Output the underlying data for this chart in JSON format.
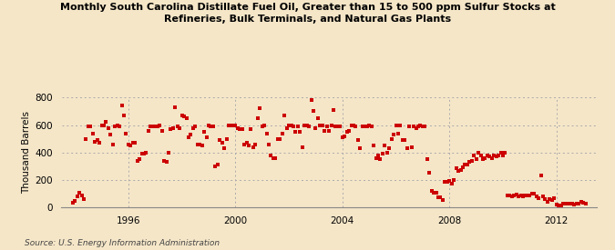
{
  "title": "Monthly South Carolina Distillate Fuel Oil, Greater than 15 to 500 ppm Sulfur Stocks at\nRefineries, Bulk Terminals, and Natural Gas Plants",
  "ylabel": "Thousand Barrels",
  "source": "Source: U.S. Energy Information Administration",
  "background_color": "#f5e6c8",
  "plot_bg_color": "#f5e6c8",
  "marker_color": "#cc0000",
  "marker_size": 6,
  "xlim_start": 1993.5,
  "xlim_end": 2013.5,
  "ylim": [
    0,
    800
  ],
  "yticks": [
    0,
    200,
    400,
    600,
    800
  ],
  "xticks": [
    1996,
    2000,
    2004,
    2008,
    2012
  ],
  "data": [
    [
      1993.917,
      35
    ],
    [
      1994.0,
      50
    ],
    [
      1994.083,
      80
    ],
    [
      1994.167,
      110
    ],
    [
      1994.25,
      90
    ],
    [
      1994.333,
      60
    ],
    [
      1994.417,
      500
    ],
    [
      1994.5,
      590
    ],
    [
      1994.583,
      590
    ],
    [
      1994.667,
      540
    ],
    [
      1994.75,
      480
    ],
    [
      1994.833,
      490
    ],
    [
      1994.917,
      470
    ],
    [
      1995.0,
      600
    ],
    [
      1995.083,
      600
    ],
    [
      1995.167,
      620
    ],
    [
      1995.25,
      580
    ],
    [
      1995.333,
      530
    ],
    [
      1995.417,
      460
    ],
    [
      1995.5,
      590
    ],
    [
      1995.583,
      600
    ],
    [
      1995.667,
      590
    ],
    [
      1995.75,
      745
    ],
    [
      1995.833,
      670
    ],
    [
      1995.917,
      540
    ],
    [
      1996.0,
      460
    ],
    [
      1996.083,
      450
    ],
    [
      1996.167,
      470
    ],
    [
      1996.25,
      470
    ],
    [
      1996.333,
      340
    ],
    [
      1996.417,
      350
    ],
    [
      1996.5,
      390
    ],
    [
      1996.583,
      390
    ],
    [
      1996.667,
      400
    ],
    [
      1996.75,
      560
    ],
    [
      1996.833,
      590
    ],
    [
      1996.917,
      590
    ],
    [
      1997.0,
      590
    ],
    [
      1997.083,
      590
    ],
    [
      1997.167,
      600
    ],
    [
      1997.25,
      560
    ],
    [
      1997.333,
      340
    ],
    [
      1997.417,
      330
    ],
    [
      1997.5,
      400
    ],
    [
      1997.583,
      570
    ],
    [
      1997.667,
      580
    ],
    [
      1997.75,
      730
    ],
    [
      1997.833,
      590
    ],
    [
      1997.917,
      580
    ],
    [
      1998.0,
      670
    ],
    [
      1998.083,
      660
    ],
    [
      1998.167,
      650
    ],
    [
      1998.25,
      510
    ],
    [
      1998.333,
      530
    ],
    [
      1998.417,
      580
    ],
    [
      1998.5,
      590
    ],
    [
      1998.583,
      460
    ],
    [
      1998.667,
      460
    ],
    [
      1998.75,
      450
    ],
    [
      1998.833,
      550
    ],
    [
      1998.917,
      510
    ],
    [
      1999.0,
      600
    ],
    [
      1999.083,
      590
    ],
    [
      1999.167,
      590
    ],
    [
      1999.25,
      300
    ],
    [
      1999.333,
      310
    ],
    [
      1999.417,
      490
    ],
    [
      1999.5,
      470
    ],
    [
      1999.583,
      430
    ],
    [
      1999.667,
      500
    ],
    [
      1999.75,
      600
    ],
    [
      1999.833,
      600
    ],
    [
      1999.917,
      600
    ],
    [
      2000.0,
      600
    ],
    [
      2000.083,
      580
    ],
    [
      2000.167,
      570
    ],
    [
      2000.25,
      570
    ],
    [
      2000.333,
      455
    ],
    [
      2000.417,
      470
    ],
    [
      2000.5,
      450
    ],
    [
      2000.583,
      570
    ],
    [
      2000.667,
      440
    ],
    [
      2000.75,
      455
    ],
    [
      2000.833,
      650
    ],
    [
      2000.917,
      720
    ],
    [
      2001.0,
      590
    ],
    [
      2001.083,
      600
    ],
    [
      2001.167,
      540
    ],
    [
      2001.25,
      460
    ],
    [
      2001.333,
      380
    ],
    [
      2001.417,
      360
    ],
    [
      2001.5,
      360
    ],
    [
      2001.583,
      500
    ],
    [
      2001.667,
      500
    ],
    [
      2001.75,
      540
    ],
    [
      2001.833,
      670
    ],
    [
      2001.917,
      580
    ],
    [
      2002.0,
      600
    ],
    [
      2002.083,
      600
    ],
    [
      2002.167,
      590
    ],
    [
      2002.25,
      550
    ],
    [
      2002.333,
      590
    ],
    [
      2002.417,
      550
    ],
    [
      2002.5,
      440
    ],
    [
      2002.583,
      600
    ],
    [
      2002.667,
      600
    ],
    [
      2002.75,
      590
    ],
    [
      2002.833,
      780
    ],
    [
      2002.917,
      700
    ],
    [
      2003.0,
      580
    ],
    [
      2003.083,
      650
    ],
    [
      2003.167,
      600
    ],
    [
      2003.25,
      600
    ],
    [
      2003.333,
      560
    ],
    [
      2003.417,
      590
    ],
    [
      2003.5,
      560
    ],
    [
      2003.583,
      600
    ],
    [
      2003.667,
      710
    ],
    [
      2003.75,
      590
    ],
    [
      2003.833,
      590
    ],
    [
      2003.917,
      590
    ],
    [
      2004.0,
      510
    ],
    [
      2004.083,
      520
    ],
    [
      2004.167,
      550
    ],
    [
      2004.25,
      560
    ],
    [
      2004.333,
      600
    ],
    [
      2004.417,
      600
    ],
    [
      2004.5,
      590
    ],
    [
      2004.583,
      490
    ],
    [
      2004.667,
      430
    ],
    [
      2004.75,
      590
    ],
    [
      2004.833,
      590
    ],
    [
      2004.917,
      590
    ],
    [
      2005.0,
      600
    ],
    [
      2005.083,
      590
    ],
    [
      2005.167,
      450
    ],
    [
      2005.25,
      360
    ],
    [
      2005.333,
      380
    ],
    [
      2005.417,
      350
    ],
    [
      2005.5,
      390
    ],
    [
      2005.583,
      450
    ],
    [
      2005.667,
      400
    ],
    [
      2005.75,
      430
    ],
    [
      2005.833,
      500
    ],
    [
      2005.917,
      530
    ],
    [
      2006.0,
      600
    ],
    [
      2006.083,
      540
    ],
    [
      2006.167,
      600
    ],
    [
      2006.25,
      490
    ],
    [
      2006.333,
      490
    ],
    [
      2006.417,
      430
    ],
    [
      2006.5,
      590
    ],
    [
      2006.583,
      440
    ],
    [
      2006.667,
      590
    ],
    [
      2006.75,
      580
    ],
    [
      2006.833,
      590
    ],
    [
      2006.917,
      600
    ],
    [
      2007.0,
      590
    ],
    [
      2007.083,
      590
    ],
    [
      2007.167,
      350
    ],
    [
      2007.25,
      250
    ],
    [
      2007.333,
      120
    ],
    [
      2007.417,
      110
    ],
    [
      2007.5,
      110
    ],
    [
      2007.583,
      75
    ],
    [
      2007.667,
      75
    ],
    [
      2007.75,
      55
    ],
    [
      2007.833,
      190
    ],
    [
      2007.917,
      185
    ],
    [
      2008.0,
      195
    ],
    [
      2008.083,
      175
    ],
    [
      2008.167,
      200
    ],
    [
      2008.25,
      285
    ],
    [
      2008.333,
      265
    ],
    [
      2008.417,
      275
    ],
    [
      2008.5,
      295
    ],
    [
      2008.583,
      310
    ],
    [
      2008.667,
      310
    ],
    [
      2008.75,
      330
    ],
    [
      2008.833,
      340
    ],
    [
      2008.917,
      380
    ],
    [
      2009.0,
      355
    ],
    [
      2009.083,
      400
    ],
    [
      2009.167,
      380
    ],
    [
      2009.25,
      350
    ],
    [
      2009.333,
      360
    ],
    [
      2009.417,
      380
    ],
    [
      2009.5,
      370
    ],
    [
      2009.583,
      360
    ],
    [
      2009.667,
      380
    ],
    [
      2009.75,
      370
    ],
    [
      2009.833,
      380
    ],
    [
      2009.917,
      400
    ],
    [
      2010.0,
      380
    ],
    [
      2010.083,
      400
    ],
    [
      2010.167,
      90
    ],
    [
      2010.25,
      85
    ],
    [
      2010.333,
      80
    ],
    [
      2010.417,
      90
    ],
    [
      2010.5,
      95
    ],
    [
      2010.583,
      80
    ],
    [
      2010.667,
      85
    ],
    [
      2010.75,
      80
    ],
    [
      2010.833,
      90
    ],
    [
      2010.917,
      90
    ],
    [
      2011.0,
      90
    ],
    [
      2011.083,
      100
    ],
    [
      2011.167,
      100
    ],
    [
      2011.25,
      80
    ],
    [
      2011.333,
      70
    ],
    [
      2011.417,
      230
    ],
    [
      2011.5,
      80
    ],
    [
      2011.583,
      60
    ],
    [
      2011.667,
      40
    ],
    [
      2011.75,
      60
    ],
    [
      2011.833,
      55
    ],
    [
      2011.917,
      70
    ],
    [
      2012.0,
      20
    ],
    [
      2012.083,
      15
    ],
    [
      2012.167,
      15
    ],
    [
      2012.25,
      25
    ],
    [
      2012.333,
      30
    ],
    [
      2012.417,
      25
    ],
    [
      2012.5,
      30
    ],
    [
      2012.583,
      25
    ],
    [
      2012.667,
      20
    ],
    [
      2012.75,
      25
    ],
    [
      2012.833,
      30
    ],
    [
      2012.917,
      40
    ],
    [
      2013.0,
      35
    ],
    [
      2013.083,
      25
    ]
  ]
}
